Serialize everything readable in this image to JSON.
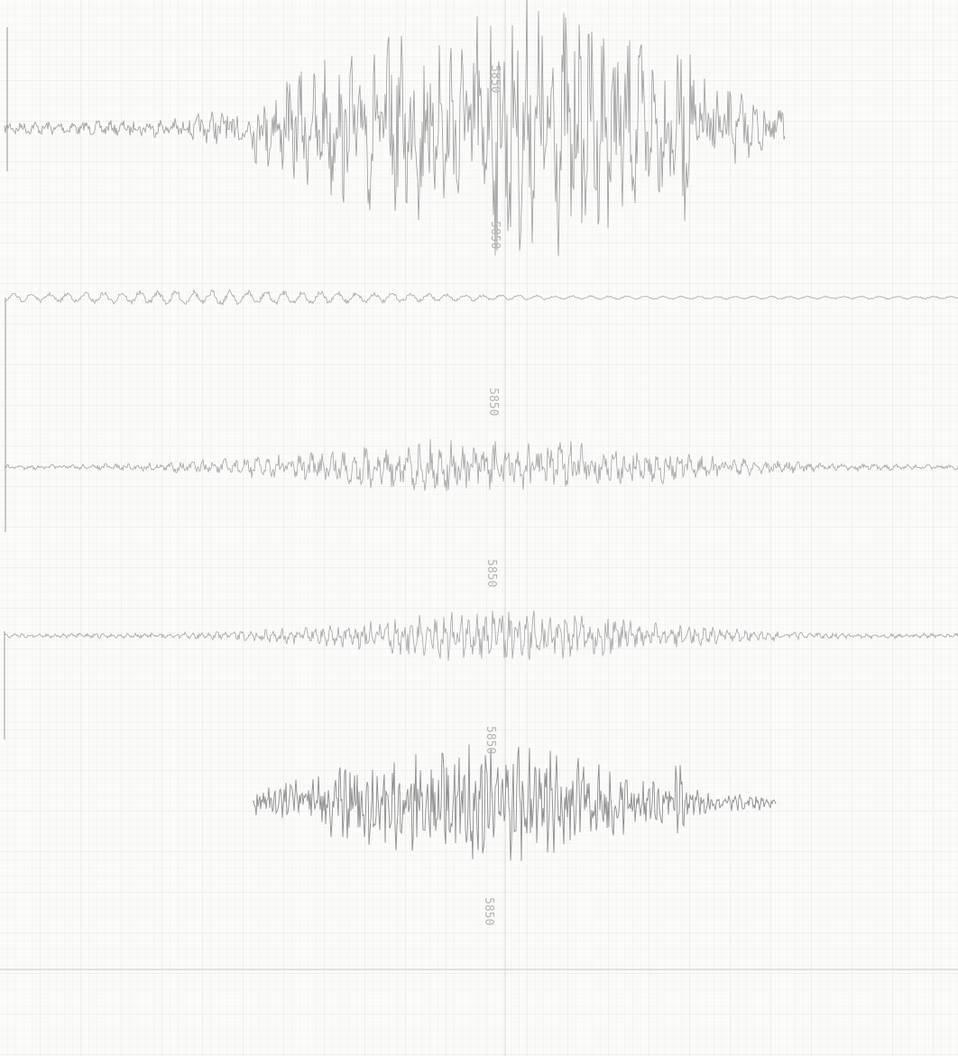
{
  "labels": [
    "5850",
    "5850",
    "5850",
    "5850",
    "5850",
    "5850"
  ]
}
